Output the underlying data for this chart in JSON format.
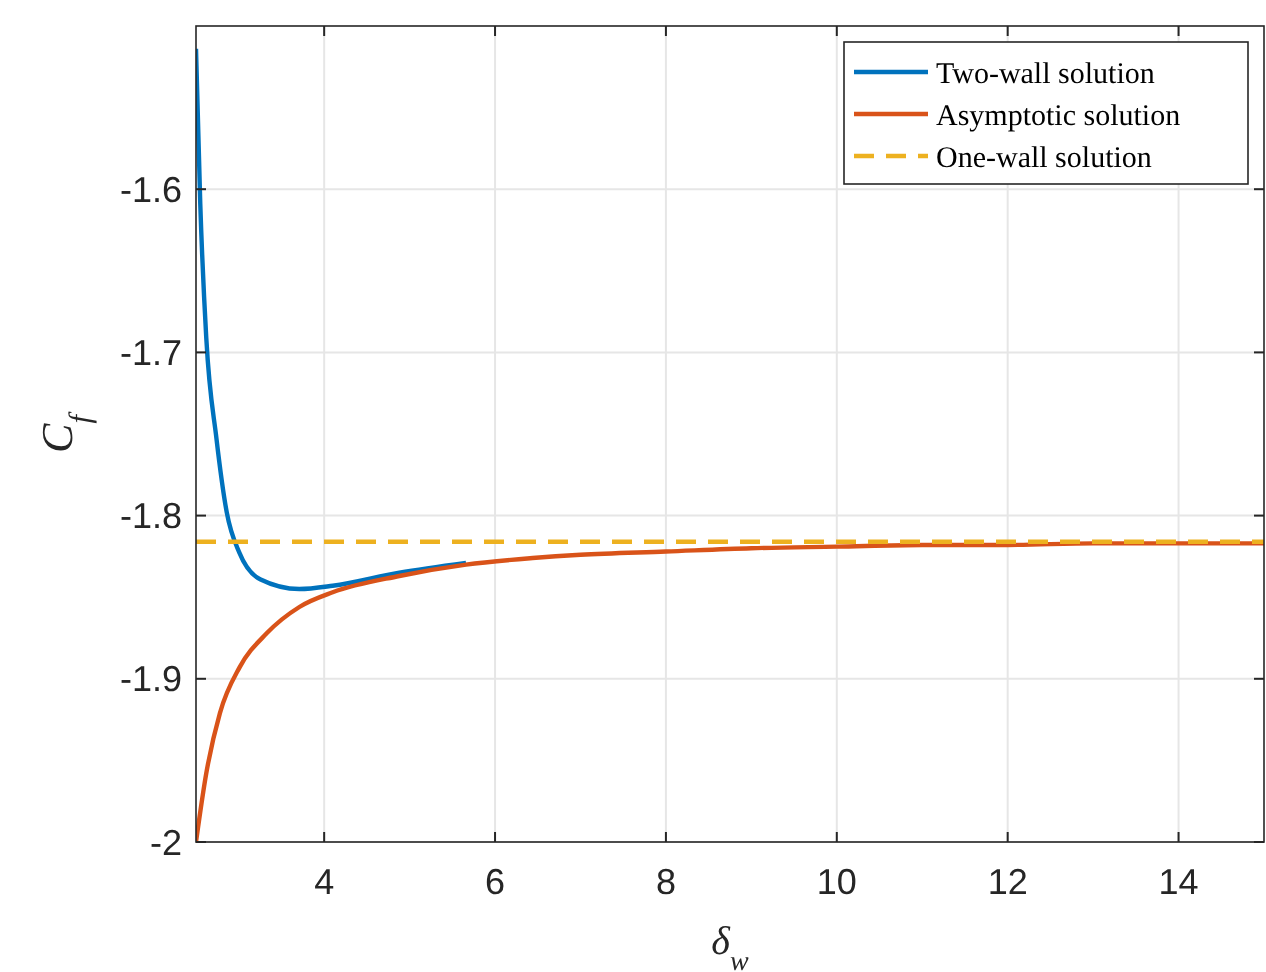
{
  "chart_data": {
    "type": "line",
    "xlabel": "δ$_{w}$",
    "ylabel": "C$_{f}$",
    "xlim": [
      2.5,
      15
    ],
    "ylim": [
      -2,
      -1.5
    ],
    "xticks": [
      4,
      6,
      8,
      10,
      12,
      14
    ],
    "yticks": [
      -2,
      -1.9,
      -1.8,
      -1.7,
      -1.6
    ],
    "grid": true,
    "legend": "top right",
    "series": [
      {
        "name": "Two-wall solution",
        "color": "#0072bd",
        "line_style": "solid",
        "x": [
          2.5,
          2.55,
          2.62,
          2.74,
          2.86,
          3.01,
          3.25,
          3.71,
          4.1,
          4.88,
          5.66
        ],
        "values": [
          -1.514,
          -1.609,
          -1.691,
          -1.753,
          -1.798,
          -1.823,
          -1.839,
          -1.845,
          -1.843,
          -1.835,
          -1.829
        ]
      },
      {
        "name": "Asymptotic solution",
        "color": "#d95319",
        "line_style": "solid",
        "x": [
          2.5,
          2.62,
          2.78,
          3.01,
          3.33,
          3.71,
          4.1,
          4.88,
          5.66,
          6.44,
          7,
          8,
          9,
          10,
          11,
          12,
          13,
          14,
          15
        ],
        "values": [
          -2,
          -1.958,
          -1.921,
          -1.893,
          -1.872,
          -1.856,
          -1.847,
          -1.837,
          -1.83,
          -1.826,
          -1.824,
          -1.822,
          -1.82,
          -1.819,
          -1.818,
          -1.818,
          -1.817,
          -1.817,
          -1.817
        ]
      },
      {
        "name": "One-wall solution",
        "color": "#edb120",
        "line_style": "dashed",
        "x": [
          2.5,
          15
        ],
        "values": [
          -1.816,
          -1.816
        ]
      }
    ]
  }
}
